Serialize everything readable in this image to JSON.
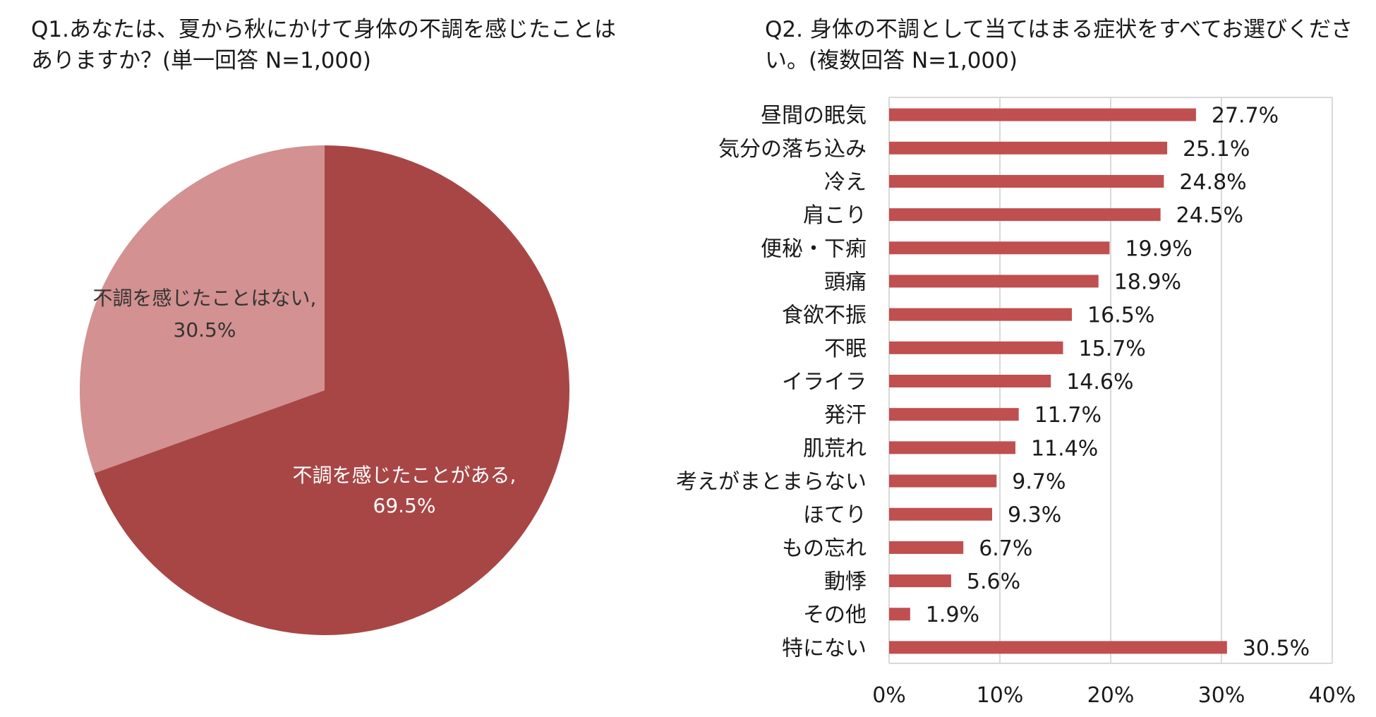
{
  "colors": {
    "dark": "#a84646",
    "light": "#d39191",
    "bar": "#c04f50",
    "grid": "#d9d9d9",
    "text": "#1a1a1a"
  },
  "q1": {
    "title": "Q1.あなたは、夏から秋にかけて身体の不調を感じたことはありますか？(単一回答 N=1,000)"
  },
  "q2": {
    "title": "Q2. 身体の不調として当てはまる症状をすべてお選びください。(複数回答 N=1,000)"
  },
  "chart_data": [
    {
      "type": "pie",
      "slices": [
        {
          "label": "不調を感じたことがある,",
          "value": 69.5,
          "value_label": "69.5%",
          "color": "#a84646"
        },
        {
          "label": "不調を感じたことはない,",
          "value": 30.5,
          "value_label": "30.5%",
          "color": "#d39191"
        }
      ]
    },
    {
      "type": "bar",
      "orientation": "horizontal",
      "categories": [
        "昼間の眠気",
        "気分の落ち込み",
        "冷え",
        "肩こり",
        "便秘・下痢",
        "頭痛",
        "食欲不振",
        "不眠",
        "イライラ",
        "発汗",
        "肌荒れ",
        "考えがまとまらない",
        "ほてり",
        "もの忘れ",
        "動悸",
        "その他",
        "特にない"
      ],
      "values": [
        27.7,
        25.1,
        24.8,
        24.5,
        19.9,
        18.9,
        16.5,
        15.7,
        14.6,
        11.7,
        11.4,
        9.7,
        9.3,
        6.7,
        5.6,
        1.9,
        30.5
      ],
      "value_labels": [
        "27.7%",
        "25.1%",
        "24.8%",
        "24.5%",
        "19.9%",
        "18.9%",
        "16.5%",
        "15.7%",
        "14.6%",
        "11.7%",
        "11.4%",
        "9.7%",
        "9.3%",
        "6.7%",
        "5.6%",
        "1.9%",
        "30.5%"
      ],
      "xlim": [
        0,
        40
      ],
      "xticks": [
        0,
        10,
        20,
        30,
        40
      ],
      "xtick_labels": [
        "0%",
        "10%",
        "20%",
        "30%",
        "40%"
      ],
      "grid": true
    }
  ]
}
